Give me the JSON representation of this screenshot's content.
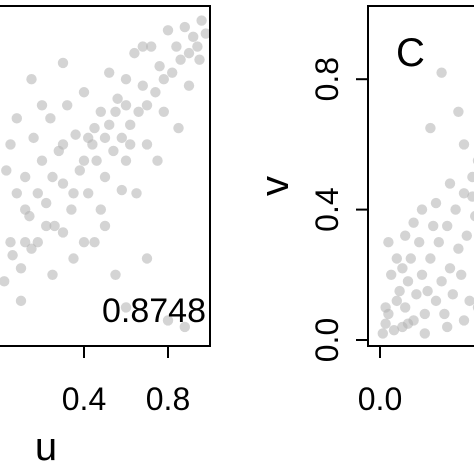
{
  "chart_data": [
    {
      "type": "scatter",
      "xlabel": "u",
      "ylabel": "",
      "annotation": "0.8748",
      "xlim": [
        0,
        1
      ],
      "ylim": [
        0,
        1
      ],
      "x_tick_labels": [
        "0.4",
        "0.8"
      ],
      "x_ticks": [
        0.4,
        0.8
      ],
      "point_color": "#b0b0b0",
      "points": [
        [
          0.02,
          0.18
        ],
        [
          0.05,
          0.3
        ],
        [
          0.08,
          0.45
        ],
        [
          0.1,
          0.22
        ],
        [
          0.12,
          0.5
        ],
        [
          0.14,
          0.38
        ],
        [
          0.16,
          0.62
        ],
        [
          0.18,
          0.3
        ],
        [
          0.2,
          0.55
        ],
        [
          0.22,
          0.42
        ],
        [
          0.24,
          0.68
        ],
        [
          0.26,
          0.35
        ],
        [
          0.28,
          0.58
        ],
        [
          0.3,
          0.48
        ],
        [
          0.32,
          0.72
        ],
        [
          0.34,
          0.4
        ],
        [
          0.36,
          0.63
        ],
        [
          0.38,
          0.52
        ],
        [
          0.4,
          0.76
        ],
        [
          0.42,
          0.45
        ],
        [
          0.44,
          0.6
        ],
        [
          0.46,
          0.55
        ],
        [
          0.48,
          0.7
        ],
        [
          0.5,
          0.5
        ],
        [
          0.52,
          0.82
        ],
        [
          0.54,
          0.58
        ],
        [
          0.56,
          0.74
        ],
        [
          0.58,
          0.62
        ],
        [
          0.6,
          0.8
        ],
        [
          0.62,
          0.66
        ],
        [
          0.64,
          0.88
        ],
        [
          0.66,
          0.7
        ],
        [
          0.68,
          0.78
        ],
        [
          0.7,
          0.72
        ],
        [
          0.72,
          0.9
        ],
        [
          0.74,
          0.76
        ],
        [
          0.76,
          0.84
        ],
        [
          0.78,
          0.8
        ],
        [
          0.8,
          0.95
        ],
        [
          0.82,
          0.82
        ],
        [
          0.84,
          0.9
        ],
        [
          0.86,
          0.86
        ],
        [
          0.88,
          0.96
        ],
        [
          0.9,
          0.88
        ],
        [
          0.92,
          0.93
        ],
        [
          0.94,
          0.9
        ],
        [
          0.96,
          0.98
        ],
        [
          0.98,
          0.94
        ],
        [
          0.1,
          0.12
        ],
        [
          0.15,
          0.28
        ],
        [
          0.25,
          0.2
        ],
        [
          0.3,
          0.33
        ],
        [
          0.35,
          0.25
        ],
        [
          0.45,
          0.3
        ],
        [
          0.55,
          0.2
        ],
        [
          0.6,
          0.1
        ],
        [
          0.7,
          0.25
        ],
        [
          0.8,
          0.06
        ],
        [
          0.88,
          0.04
        ],
        [
          0.5,
          0.35
        ],
        [
          0.4,
          0.3
        ],
        [
          0.65,
          0.45
        ],
        [
          0.75,
          0.55
        ],
        [
          0.85,
          0.65
        ],
        [
          0.2,
          0.72
        ],
        [
          0.3,
          0.85
        ],
        [
          0.15,
          0.8
        ],
        [
          0.08,
          0.68
        ],
        [
          0.05,
          0.6
        ],
        [
          0.03,
          0.52
        ],
        [
          0.12,
          0.3
        ],
        [
          0.6,
          0.55
        ],
        [
          0.7,
          0.6
        ],
        [
          0.45,
          0.65
        ],
        [
          0.55,
          0.7
        ],
        [
          0.62,
          0.6
        ],
        [
          0.5,
          0.62
        ],
        [
          0.4,
          0.55
        ],
        [
          0.35,
          0.45
        ],
        [
          0.25,
          0.5
        ],
        [
          0.18,
          0.45
        ],
        [
          0.68,
          0.9
        ],
        [
          0.78,
          0.7
        ],
        [
          0.9,
          0.78
        ],
        [
          0.95,
          0.86
        ],
        [
          0.58,
          0.46
        ],
        [
          0.48,
          0.4
        ],
        [
          0.42,
          0.62
        ],
        [
          0.52,
          0.66
        ],
        [
          0.6,
          0.72
        ],
        [
          0.3,
          0.6
        ],
        [
          0.22,
          0.35
        ],
        [
          0.12,
          0.4
        ],
        [
          0.06,
          0.26
        ]
      ]
    },
    {
      "type": "scatter",
      "panel_label": "C",
      "xlabel": "",
      "ylabel": "v",
      "xlim": [
        0,
        1
      ],
      "ylim": [
        0,
        1
      ],
      "x_tick_labels": [
        "0.0"
      ],
      "x_ticks": [
        0.0
      ],
      "y_tick_labels": [
        "0.0",
        "0.4",
        "0.8"
      ],
      "y_ticks": [
        0.0,
        0.4,
        0.8
      ],
      "point_color": "#b0b0b0",
      "points": [
        [
          0.01,
          0.02
        ],
        [
          0.02,
          0.05
        ],
        [
          0.03,
          0.08
        ],
        [
          0.05,
          0.03
        ],
        [
          0.06,
          0.12
        ],
        [
          0.08,
          0.04
        ],
        [
          0.09,
          0.1
        ],
        [
          0.1,
          0.18
        ],
        [
          0.12,
          0.06
        ],
        [
          0.13,
          0.14
        ],
        [
          0.15,
          0.2
        ],
        [
          0.16,
          0.08
        ],
        [
          0.18,
          0.25
        ],
        [
          0.2,
          0.12
        ],
        [
          0.21,
          0.3
        ],
        [
          0.22,
          0.18
        ],
        [
          0.24,
          0.35
        ],
        [
          0.25,
          0.22
        ],
        [
          0.27,
          0.4
        ],
        [
          0.28,
          0.28
        ],
        [
          0.3,
          0.45
        ],
        [
          0.31,
          0.32
        ],
        [
          0.33,
          0.5
        ],
        [
          0.34,
          0.38
        ],
        [
          0.35,
          0.55
        ],
        [
          0.02,
          0.1
        ],
        [
          0.04,
          0.2
        ],
        [
          0.07,
          0.15
        ],
        [
          0.11,
          0.25
        ],
        [
          0.14,
          0.3
        ],
        [
          0.17,
          0.15
        ],
        [
          0.19,
          0.35
        ],
        [
          0.23,
          0.08
        ],
        [
          0.26,
          0.14
        ],
        [
          0.29,
          0.2
        ],
        [
          0.32,
          0.12
        ],
        [
          0.03,
          0.3
        ],
        [
          0.06,
          0.25
        ],
        [
          0.09,
          0.32
        ],
        [
          0.12,
          0.36
        ],
        [
          0.15,
          0.4
        ],
        [
          0.2,
          0.42
        ],
        [
          0.25,
          0.48
        ],
        [
          0.3,
          0.6
        ],
        [
          0.18,
          0.65
        ],
        [
          0.22,
          0.82
        ],
        [
          0.28,
          0.7
        ],
        [
          0.33,
          0.44
        ],
        [
          0.36,
          0.46
        ],
        [
          0.08,
          0.22
        ],
        [
          0.1,
          0.05
        ],
        [
          0.16,
          0.02
        ],
        [
          0.24,
          0.04
        ],
        [
          0.3,
          0.06
        ],
        [
          0.35,
          0.1
        ]
      ]
    }
  ],
  "colors": {
    "points": "#b0b0b0",
    "frame": "#000000"
  }
}
